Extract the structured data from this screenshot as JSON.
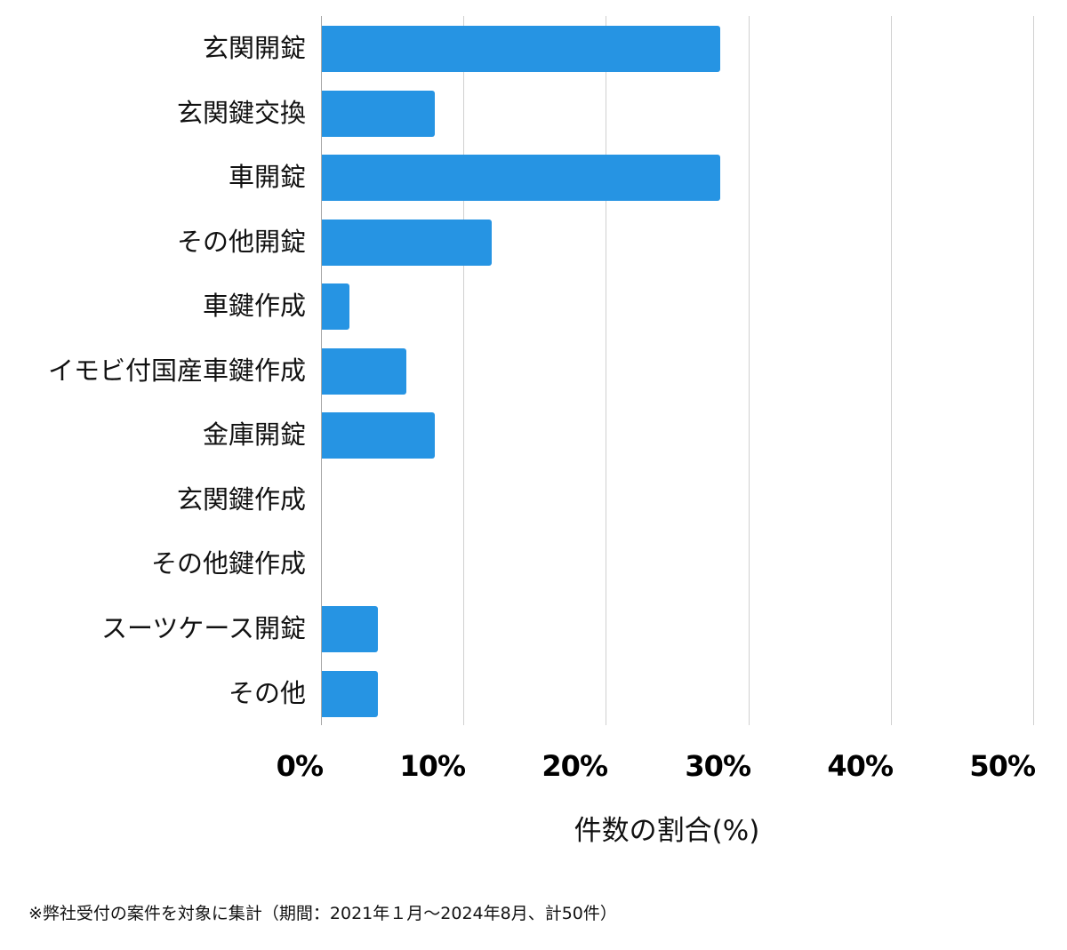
{
  "chart_data": {
    "type": "bar",
    "orientation": "horizontal",
    "title": "",
    "xlabel": "件数の割合(%)",
    "ylabel": "",
    "xlim": [
      0,
      50
    ],
    "grid": true,
    "legend": null,
    "bar_color": "#2694E3",
    "categories": [
      "玄関開錠",
      "玄関鍵交換",
      "車開錠",
      "その他開錠",
      "車鍵作成",
      "イモビ付国産車鍵作成",
      "金庫開錠",
      "玄関鍵作成",
      "その他鍵作成",
      "スーツケース開錠",
      "その他"
    ],
    "values": [
      28,
      8,
      28,
      12,
      2,
      6,
      8,
      0,
      0,
      4,
      4
    ],
    "x_ticks": [
      "0%",
      "10%",
      "20%",
      "30%",
      "40%",
      "50%"
    ],
    "x_tick_values": [
      0,
      10,
      20,
      30,
      40,
      50
    ],
    "footnote": "※弊社受付の案件を対象に集計（期間：2021年１月～2024年8月、計50件）"
  }
}
